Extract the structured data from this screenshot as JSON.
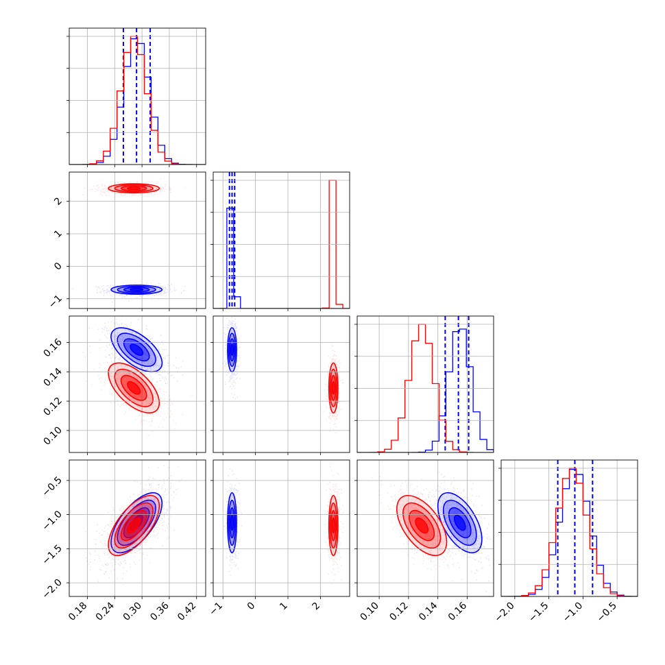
{
  "chart_data": {
    "type": "corner",
    "title": "",
    "grid": true,
    "parameters": [
      {
        "range": [
          0.14,
          0.44
        ],
        "ticks": [
          0.18,
          0.24,
          0.3,
          0.36,
          0.42
        ],
        "tick_labels": [
          "0.18",
          "0.24",
          "0.30",
          "0.36",
          "0.42"
        ]
      },
      {
        "range": [
          -1.3,
          2.9
        ],
        "ticks": [
          -1,
          0,
          1,
          2
        ],
        "tick_labels": [
          "−1",
          "0",
          "1",
          "2"
        ]
      },
      {
        "range": [
          0.085,
          0.178
        ],
        "ticks": [
          0.1,
          0.12,
          0.14,
          0.16
        ],
        "tick_labels": [
          "0.10",
          "0.12",
          "0.14",
          "0.16"
        ]
      },
      {
        "range": [
          -2.2,
          -0.2
        ],
        "ticks": [
          -2.0,
          -1.5,
          -1.0,
          -0.5
        ],
        "tick_labels": [
          "−2.0",
          "−1.5",
          "−1.0",
          "−0.5"
        ]
      }
    ],
    "series": [
      {
        "color": "#0000ff",
        "means": [
          0.288,
          -0.72,
          0.155,
          -1.12
        ],
        "sds": [
          0.028,
          0.07,
          0.0075,
          0.22
        ],
        "corr": {
          "1-0": 0.0,
          "2-0": -0.6,
          "2-1": 0.0,
          "3-0": 0.65,
          "3-1": 0.0,
          "3-2": -0.55
        },
        "quantiles": [
          [
            0.259,
            0.288,
            0.318
          ],
          [
            -0.8,
            -0.72,
            -0.64
          ],
          [
            0.145,
            0.154,
            0.161
          ],
          [
            -1.37,
            -1.12,
            -0.86
          ]
        ]
      },
      {
        "color": "#ff0000",
        "means": [
          0.282,
          2.4,
          0.129,
          -1.16
        ],
        "sds": [
          0.028,
          0.07,
          0.0085,
          0.22
        ],
        "corr": {
          "1-0": 0.0,
          "2-0": -0.6,
          "2-1": 0.0,
          "3-0": 0.65,
          "3-1": 0.0,
          "3-2": -0.55
        }
      }
    ]
  }
}
